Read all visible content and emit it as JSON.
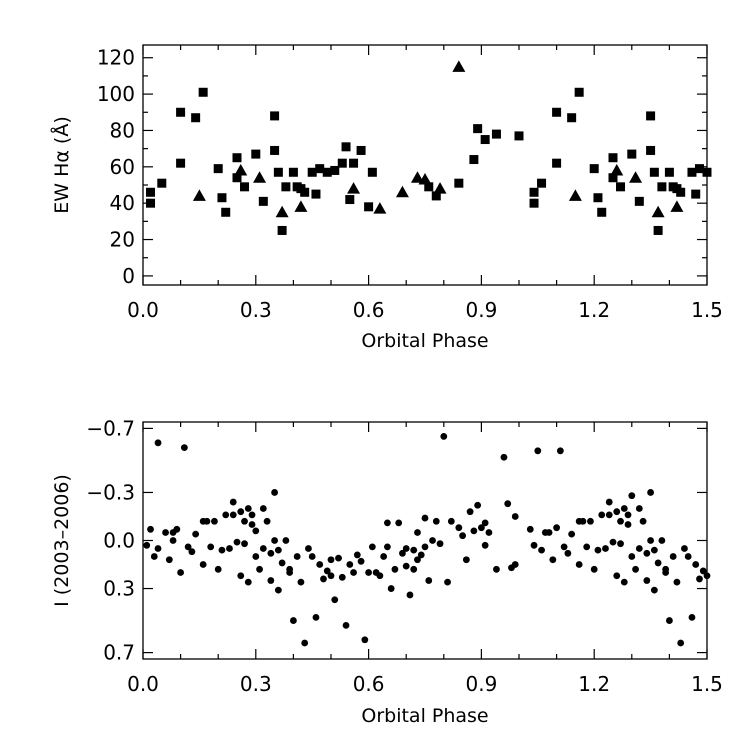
{
  "chart_data": [
    {
      "type": "scatter",
      "xlabel": "Orbital Phase",
      "ylabel": "EW Hα (Å)",
      "xlim": [
        0.0,
        1.5
      ],
      "ylim": [
        -5,
        127
      ],
      "y_inverted": false,
      "xticks": [
        "0.0",
        "0.3",
        "0.6",
        "0.9",
        "1.2",
        "1.5"
      ],
      "xtick_values": [
        0.0,
        0.3,
        0.6,
        0.9,
        1.2,
        1.5
      ],
      "yticks": [
        "0",
        "20",
        "40",
        "60",
        "80",
        "100",
        "120"
      ],
      "ytick_values": [
        0,
        20,
        40,
        60,
        80,
        100,
        120
      ],
      "series": [
        {
          "marker": "square",
          "points": [
            [
              0.02,
              46
            ],
            [
              0.02,
              40
            ],
            [
              0.05,
              51
            ],
            [
              0.1,
              90
            ],
            [
              0.1,
              62
            ],
            [
              0.14,
              87
            ],
            [
              0.16,
              101
            ],
            [
              0.2,
              59
            ],
            [
              0.21,
              43
            ],
            [
              0.22,
              35
            ],
            [
              0.25,
              54
            ],
            [
              0.25,
              65
            ],
            [
              0.27,
              49
            ],
            [
              0.3,
              67
            ],
            [
              0.32,
              41
            ],
            [
              0.35,
              69
            ],
            [
              0.35,
              88
            ],
            [
              0.36,
              57
            ],
            [
              0.37,
              25
            ],
            [
              0.38,
              49
            ],
            [
              0.4,
              57
            ],
            [
              0.41,
              49
            ],
            [
              0.42,
              48
            ],
            [
              0.43,
              46
            ],
            [
              0.45,
              57
            ],
            [
              0.46,
              45
            ],
            [
              0.47,
              59
            ],
            [
              0.49,
              57
            ],
            [
              0.51,
              58
            ],
            [
              0.53,
              62
            ],
            [
              0.54,
              71
            ],
            [
              0.55,
              42
            ],
            [
              0.56,
              62
            ],
            [
              0.58,
              69
            ],
            [
              0.6,
              38
            ],
            [
              0.61,
              57
            ],
            [
              0.76,
              49
            ],
            [
              0.78,
              44
            ],
            [
              0.84,
              51
            ],
            [
              0.88,
              64
            ],
            [
              0.89,
              81
            ],
            [
              0.91,
              75
            ],
            [
              0.94,
              78
            ],
            [
              1.0,
              77
            ],
            [
              1.04,
              46
            ],
            [
              1.04,
              40
            ],
            [
              1.06,
              51
            ],
            [
              1.1,
              90
            ],
            [
              1.1,
              62
            ],
            [
              1.14,
              87
            ],
            [
              1.16,
              101
            ],
            [
              1.2,
              59
            ],
            [
              1.21,
              43
            ],
            [
              1.22,
              35
            ],
            [
              1.25,
              54
            ],
            [
              1.25,
              65
            ],
            [
              1.27,
              49
            ],
            [
              1.3,
              67
            ],
            [
              1.32,
              41
            ],
            [
              1.35,
              69
            ],
            [
              1.35,
              88
            ],
            [
              1.36,
              57
            ],
            [
              1.37,
              25
            ],
            [
              1.38,
              49
            ],
            [
              1.4,
              57
            ],
            [
              1.41,
              49
            ],
            [
              1.42,
              48
            ],
            [
              1.43,
              46
            ],
            [
              1.46,
              57
            ],
            [
              1.47,
              45
            ],
            [
              1.48,
              59
            ],
            [
              1.5,
              57
            ]
          ]
        },
        {
          "marker": "triangle",
          "points": [
            [
              0.15,
              44
            ],
            [
              0.26,
              58
            ],
            [
              0.31,
              54
            ],
            [
              0.37,
              35
            ],
            [
              0.42,
              38
            ],
            [
              0.56,
              48
            ],
            [
              0.63,
              37
            ],
            [
              0.69,
              46
            ],
            [
              0.73,
              54
            ],
            [
              0.75,
              53
            ],
            [
              0.79,
              48
            ],
            [
              0.84,
              115
            ],
            [
              1.15,
              44
            ],
            [
              1.26,
              58
            ],
            [
              1.31,
              54
            ],
            [
              1.37,
              35
            ],
            [
              1.42,
              38
            ]
          ]
        }
      ]
    },
    {
      "type": "scatter",
      "xlabel": "Orbital Phase",
      "ylabel": "I (2003–2006)",
      "xlim": [
        0.0,
        1.5
      ],
      "ylim": [
        0.74,
        -0.74
      ],
      "y_inverted": true,
      "xticks": [
        "0.0",
        "0.3",
        "0.6",
        "0.9",
        "1.2",
        "1.5"
      ],
      "xtick_values": [
        0.0,
        0.3,
        0.6,
        0.9,
        1.2,
        1.5
      ],
      "yticks": [
        "−0.7",
        "−0.3",
        "0.0",
        "0.3",
        "0.7"
      ],
      "ytick_values": [
        -0.7,
        -0.3,
        0.0,
        0.3,
        0.7
      ],
      "series": [
        {
          "marker": "circle",
          "points": [
            [
              0.01,
              0.03
            ],
            [
              0.02,
              -0.07
            ],
            [
              0.03,
              0.1
            ],
            [
              0.04,
              0.05
            ],
            [
              0.04,
              -0.61
            ],
            [
              0.06,
              -0.05
            ],
            [
              0.07,
              0.12
            ],
            [
              0.08,
              -0.05
            ],
            [
              0.08,
              0.0
            ],
            [
              0.09,
              -0.07
            ],
            [
              0.1,
              0.2
            ],
            [
              0.11,
              -0.58
            ],
            [
              0.12,
              0.04
            ],
            [
              0.13,
              0.07
            ],
            [
              0.14,
              -0.04
            ],
            [
              0.16,
              -0.12
            ],
            [
              0.16,
              0.15
            ],
            [
              0.17,
              -0.12
            ],
            [
              0.18,
              0.04
            ],
            [
              0.19,
              -0.12
            ],
            [
              0.2,
              0.18
            ],
            [
              0.21,
              0.06
            ],
            [
              0.22,
              -0.16
            ],
            [
              0.23,
              0.05
            ],
            [
              0.24,
              -0.24
            ],
            [
              0.24,
              -0.16
            ],
            [
              0.25,
              0.01
            ],
            [
              0.26,
              -0.18
            ],
            [
              0.26,
              0.22
            ],
            [
              0.27,
              -0.12
            ],
            [
              0.27,
              0.02
            ],
            [
              0.28,
              0.26
            ],
            [
              0.28,
              -0.2
            ],
            [
              0.29,
              -0.1
            ],
            [
              0.29,
              -0.16
            ],
            [
              0.3,
              -0.06
            ],
            [
              0.3,
              0.1
            ],
            [
              0.31,
              0.18
            ],
            [
              0.32,
              -0.2
            ],
            [
              0.32,
              0.05
            ],
            [
              0.33,
              -0.12
            ],
            [
              0.34,
              0.25
            ],
            [
              0.34,
              0.08
            ],
            [
              0.35,
              0.0
            ],
            [
              0.35,
              -0.3
            ],
            [
              0.36,
              0.06
            ],
            [
              0.36,
              0.31
            ],
            [
              0.37,
              0.14
            ],
            [
              0.38,
              0.0
            ],
            [
              0.39,
              0.18
            ],
            [
              0.39,
              0.2
            ],
            [
              0.4,
              0.5
            ],
            [
              0.41,
              0.1
            ],
            [
              0.42,
              0.26
            ],
            [
              0.43,
              0.64
            ],
            [
              0.44,
              0.05
            ],
            [
              0.45,
              0.1
            ],
            [
              0.46,
              0.48
            ],
            [
              0.47,
              0.15
            ],
            [
              0.48,
              0.24
            ],
            [
              0.49,
              0.19
            ],
            [
              0.5,
              0.22
            ],
            [
              0.5,
              0.12
            ],
            [
              0.51,
              0.37
            ],
            [
              0.52,
              0.11
            ],
            [
              0.53,
              0.23
            ],
            [
              0.54,
              0.53
            ],
            [
              0.55,
              0.15
            ],
            [
              0.56,
              0.2
            ],
            [
              0.57,
              0.09
            ],
            [
              0.58,
              0.13
            ],
            [
              0.59,
              0.62
            ],
            [
              0.6,
              0.2
            ],
            [
              0.61,
              0.04
            ],
            [
              0.62,
              0.2
            ],
            [
              0.63,
              0.22
            ],
            [
              0.64,
              0.1
            ],
            [
              0.65,
              0.04
            ],
            [
              0.65,
              -0.11
            ],
            [
              0.66,
              0.3
            ],
            [
              0.67,
              0.18
            ],
            [
              0.68,
              -0.11
            ],
            [
              0.69,
              0.08
            ],
            [
              0.7,
              0.05
            ],
            [
              0.7,
              0.16
            ],
            [
              0.71,
              0.34
            ],
            [
              0.72,
              0.18
            ],
            [
              0.72,
              0.06
            ],
            [
              0.73,
              -0.05
            ],
            [
              0.73,
              0.12
            ],
            [
              0.74,
              0.09
            ],
            [
              0.75,
              0.04
            ],
            [
              0.75,
              -0.14
            ],
            [
              0.76,
              0.25
            ],
            [
              0.77,
              0.0
            ],
            [
              0.78,
              -0.12
            ],
            [
              0.79,
              0.02
            ],
            [
              0.8,
              -0.65
            ],
            [
              0.81,
              0.26
            ],
            [
              0.82,
              -0.12
            ],
            [
              0.84,
              -0.08
            ],
            [
              0.85,
              -0.03
            ],
            [
              0.86,
              0.12
            ],
            [
              0.87,
              -0.18
            ],
            [
              0.88,
              -0.06
            ],
            [
              0.89,
              -0.22
            ],
            [
              0.9,
              -0.08
            ],
            [
              0.91,
              -0.11
            ],
            [
              0.91,
              0.03
            ],
            [
              0.92,
              -0.05
            ],
            [
              0.94,
              0.18
            ],
            [
              0.96,
              -0.52
            ],
            [
              0.97,
              -0.23
            ],
            [
              0.98,
              0.17
            ],
            [
              0.99,
              -0.15
            ],
            [
              0.99,
              0.15
            ],
            [
              1.03,
              -0.07
            ],
            [
              1.04,
              0.03
            ],
            [
              1.05,
              -0.56
            ],
            [
              1.06,
              0.06
            ],
            [
              1.07,
              -0.05
            ],
            [
              1.08,
              -0.05
            ],
            [
              1.09,
              0.12
            ],
            [
              1.1,
              -0.08
            ],
            [
              1.11,
              -0.56
            ],
            [
              1.12,
              0.04
            ],
            [
              1.13,
              0.08
            ],
            [
              1.14,
              -0.04
            ],
            [
              1.16,
              -0.12
            ],
            [
              1.16,
              0.15
            ],
            [
              1.17,
              -0.12
            ],
            [
              1.18,
              0.04
            ],
            [
              1.19,
              -0.12
            ],
            [
              1.2,
              0.18
            ],
            [
              1.21,
              0.06
            ],
            [
              1.22,
              -0.16
            ],
            [
              1.23,
              0.05
            ],
            [
              1.24,
              -0.24
            ],
            [
              1.24,
              -0.16
            ],
            [
              1.25,
              0.01
            ],
            [
              1.26,
              -0.18
            ],
            [
              1.26,
              0.22
            ],
            [
              1.27,
              -0.12
            ],
            [
              1.27,
              0.02
            ],
            [
              1.28,
              0.26
            ],
            [
              1.28,
              -0.2
            ],
            [
              1.29,
              -0.1
            ],
            [
              1.29,
              -0.16
            ],
            [
              1.3,
              -0.28
            ],
            [
              1.3,
              0.1
            ],
            [
              1.31,
              0.18
            ],
            [
              1.32,
              -0.2
            ],
            [
              1.32,
              0.05
            ],
            [
              1.33,
              -0.12
            ],
            [
              1.34,
              0.25
            ],
            [
              1.34,
              0.08
            ],
            [
              1.35,
              0.0
            ],
            [
              1.35,
              -0.3
            ],
            [
              1.36,
              0.06
            ],
            [
              1.36,
              0.31
            ],
            [
              1.37,
              0.14
            ],
            [
              1.38,
              0.0
            ],
            [
              1.39,
              0.18
            ],
            [
              1.39,
              0.2
            ],
            [
              1.4,
              0.5
            ],
            [
              1.41,
              0.1
            ],
            [
              1.42,
              0.26
            ],
            [
              1.43,
              0.64
            ],
            [
              1.44,
              0.05
            ],
            [
              1.45,
              0.1
            ],
            [
              1.46,
              0.48
            ],
            [
              1.47,
              0.15
            ],
            [
              1.48,
              0.24
            ],
            [
              1.49,
              0.19
            ],
            [
              1.5,
              0.22
            ]
          ]
        }
      ]
    }
  ]
}
